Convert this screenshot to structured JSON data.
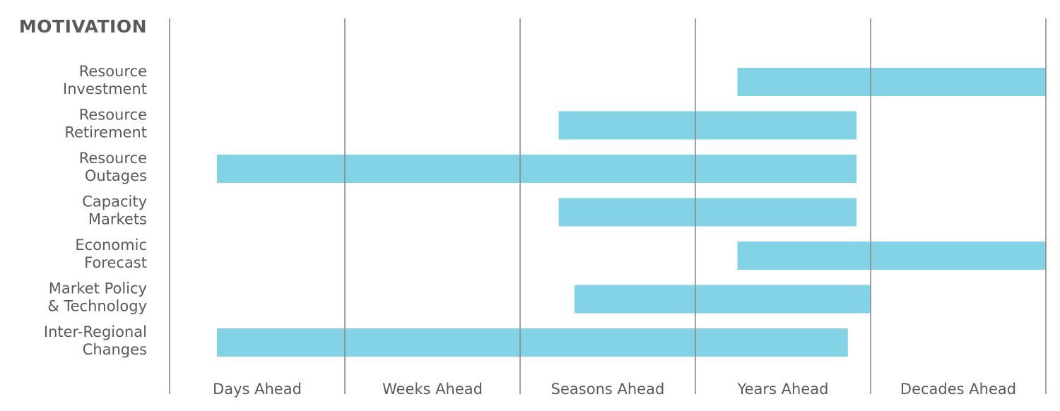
{
  "chart_data": {
    "type": "bar",
    "title": "MOTIVATION",
    "orientation": "horizontal-range",
    "x_categories": [
      "Days Ahead",
      "Weeks Ahead",
      "Seasons Ahead",
      "Years Ahead",
      "Decades Ahead"
    ],
    "xlim": [
      0,
      5
    ],
    "grid": true,
    "rows": [
      {
        "label": [
          "Resource",
          "Investment"
        ],
        "start": 3.24,
        "end": 5.0
      },
      {
        "label": [
          "Resource",
          "Retirement"
        ],
        "start": 2.22,
        "end": 3.92
      },
      {
        "label": [
          "Resource",
          "Outages"
        ],
        "start": 0.27,
        "end": 3.92
      },
      {
        "label": [
          "Capacity",
          "Markets"
        ],
        "start": 2.22,
        "end": 3.92
      },
      {
        "label": [
          "Economic",
          "Forecast"
        ],
        "start": 3.24,
        "end": 5.0
      },
      {
        "label": [
          "Market Policy",
          "& Technology"
        ],
        "start": 2.31,
        "end": 4.0
      },
      {
        "label": [
          "Inter-Regional",
          "Changes"
        ],
        "start": 0.27,
        "end": 3.87
      }
    ],
    "colors": {
      "bar": "#82d3e6",
      "text": "#5a5a5a",
      "grid": "#8c8c8c"
    }
  }
}
